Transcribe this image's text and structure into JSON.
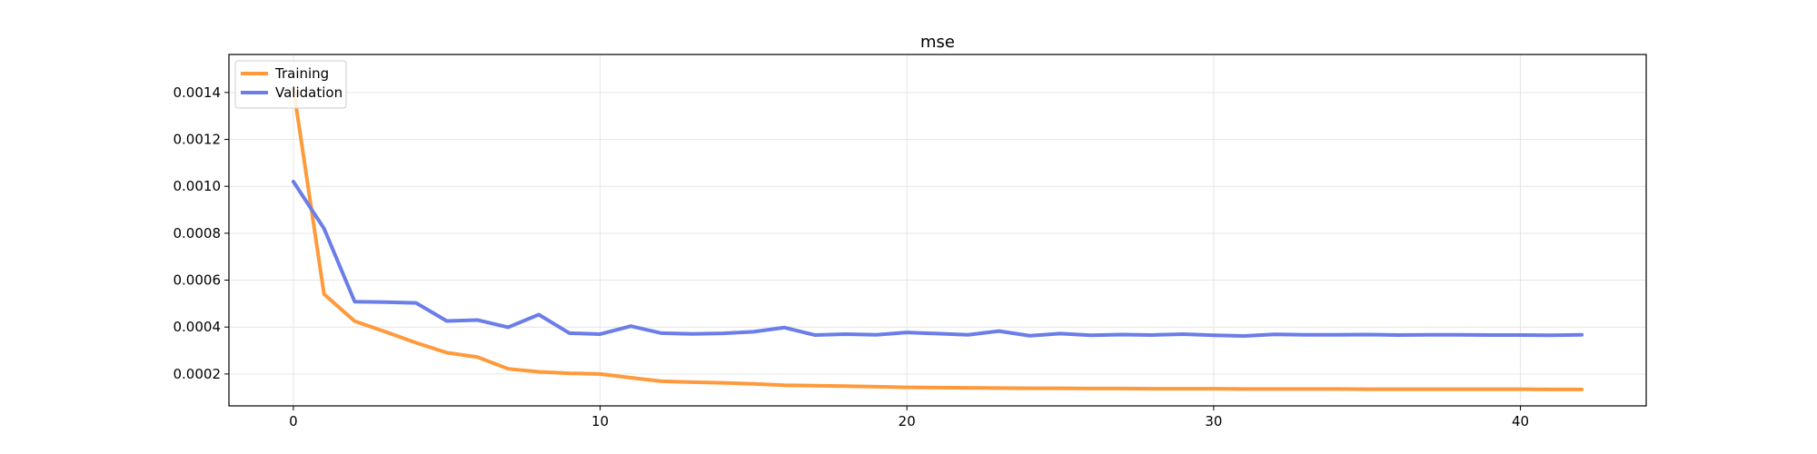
{
  "chart_data": {
    "type": "line",
    "title": "mse",
    "xlabel": "",
    "ylabel": "",
    "xlim": [
      -2.1,
      44.1
    ],
    "ylim": [
      6.4e-05,
      0.001562
    ],
    "xticks": [
      0,
      10,
      20,
      30,
      40
    ],
    "yticks": [
      0.0002,
      0.0004,
      0.0006,
      0.0008,
      0.001,
      0.0012,
      0.0014
    ],
    "ytick_labels": [
      "0.0002",
      "0.0004",
      "0.0006",
      "0.0008",
      "0.0010",
      "0.0012",
      "0.0014"
    ],
    "xtick_labels": [
      "0",
      "10",
      "20",
      "30",
      "40"
    ],
    "grid": true,
    "legend_position": "top-left",
    "x": [
      0,
      1,
      2,
      3,
      4,
      5,
      6,
      7,
      8,
      9,
      10,
      11,
      12,
      13,
      14,
      15,
      16,
      17,
      18,
      19,
      20,
      21,
      22,
      23,
      24,
      25,
      26,
      27,
      28,
      29,
      30,
      31,
      32,
      33,
      34,
      35,
      36,
      37,
      38,
      39,
      40,
      41,
      42
    ],
    "series": [
      {
        "name": "Training",
        "color": "#ff9a3c",
        "values": [
          0.00142,
          0.00054,
          0.000425,
          0.00038,
          0.000333,
          0.000291,
          0.000272,
          0.000222,
          0.000209,
          0.000203,
          0.0002,
          0.000184,
          0.000169,
          0.000165,
          0.000162,
          0.000158,
          0.000152,
          0.00015,
          0.000148,
          0.000146,
          0.000143,
          0.000142,
          0.000141,
          0.00014,
          0.000139,
          0.000139,
          0.000138,
          0.000138,
          0.000137,
          0.000137,
          0.000137,
          0.000136,
          0.000136,
          0.000136,
          0.000136,
          0.000135,
          0.000135,
          0.000135,
          0.000135,
          0.000135,
          0.000135,
          0.000134,
          0.000134
        ]
      },
      {
        "name": "Validation",
        "color": "#6b7de8",
        "values": [
          0.00102,
          0.00082,
          0.000508,
          0.000506,
          0.000503,
          0.000426,
          0.00043,
          0.000399,
          0.000453,
          0.000374,
          0.00037,
          0.000404,
          0.000374,
          0.000371,
          0.000373,
          0.00038,
          0.000398,
          0.000366,
          0.00037,
          0.000367,
          0.000377,
          0.000372,
          0.000367,
          0.000383,
          0.000363,
          0.000372,
          0.000365,
          0.000368,
          0.000366,
          0.00037,
          0.000365,
          0.000362,
          0.000369,
          0.000367,
          0.000367,
          0.000368,
          0.000366,
          0.000367,
          0.000367,
          0.000366,
          0.000366,
          0.000365,
          0.000367
        ]
      }
    ]
  }
}
